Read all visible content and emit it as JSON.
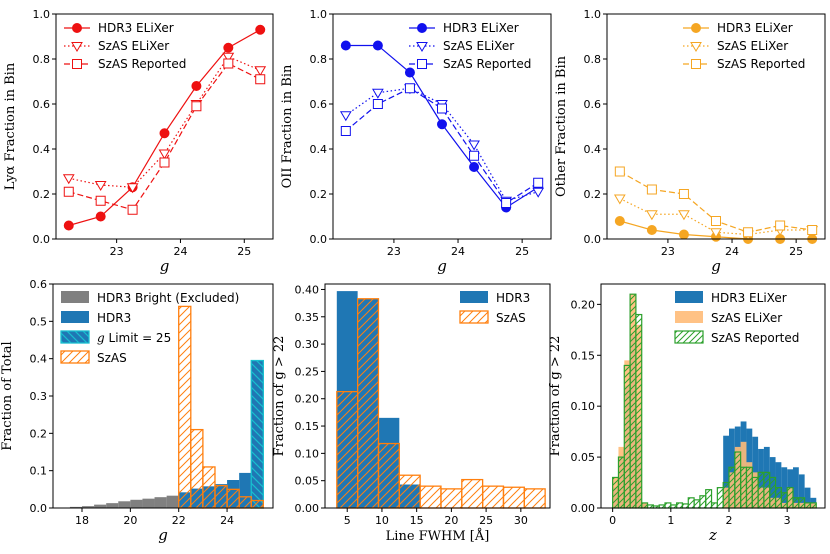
{
  "colors": {
    "lya": "#ee1111",
    "oii": "#1111ee",
    "other": "#f5a623",
    "hdr3_blue": "#1f77b4",
    "szas_orange": "#ff7f0e",
    "szas_orange_light": "#ffbb78",
    "reported_green": "#2ca02c",
    "bright_gray": "#808080",
    "glimit_cyan": "#17becf"
  },
  "chart_data": [
    {
      "id": "lya",
      "type": "line",
      "xlabel": "g",
      "ylabel": "Lyα Fraction in Bin",
      "xlim": [
        22.05,
        25.45
      ],
      "ylim": [
        0,
        1.0
      ],
      "xticks": [
        23,
        24,
        25
      ],
      "yticks": [
        0.0,
        0.2,
        0.4,
        0.6,
        0.8,
        1.0
      ],
      "x": [
        22.25,
        22.75,
        23.25,
        23.75,
        24.25,
        24.75,
        25.25
      ],
      "series": [
        {
          "name": "HDR3 ELiXer",
          "style": "solid-circle",
          "values": [
            0.06,
            0.1,
            0.23,
            0.47,
            0.68,
            0.85,
            0.93
          ]
        },
        {
          "name": "SzAS ELiXer",
          "style": "dotted-triangle",
          "values": [
            0.27,
            0.24,
            0.23,
            0.38,
            0.6,
            0.81,
            0.75
          ]
        },
        {
          "name": "SzAS Reported",
          "style": "dashed-square",
          "values": [
            0.21,
            0.17,
            0.13,
            0.34,
            0.59,
            0.78,
            0.71
          ]
        }
      ],
      "legend_loc": "top-left"
    },
    {
      "id": "oii",
      "type": "line",
      "xlabel": "g",
      "ylabel": "OII Fraction in Bin",
      "xlim": [
        22.05,
        25.45
      ],
      "ylim": [
        0,
        1.0
      ],
      "xticks": [
        23,
        24,
        25
      ],
      "yticks": [
        0.0,
        0.2,
        0.4,
        0.6,
        0.8,
        1.0
      ],
      "x": [
        22.25,
        22.75,
        23.25,
        23.75,
        24.25,
        24.75,
        25.25
      ],
      "series": [
        {
          "name": "HDR3 ELiXer",
          "style": "solid-circle",
          "values": [
            0.86,
            0.86,
            0.74,
            0.51,
            0.32,
            0.14,
            0.23
          ]
        },
        {
          "name": "SzAS ELiXer",
          "style": "dotted-triangle",
          "values": [
            0.55,
            0.65,
            0.67,
            0.6,
            0.42,
            0.17,
            0.21
          ]
        },
        {
          "name": "SzAS Reported",
          "style": "dashed-square",
          "values": [
            0.48,
            0.6,
            0.67,
            0.58,
            0.37,
            0.16,
            0.25
          ]
        }
      ],
      "legend_loc": "top-right"
    },
    {
      "id": "other",
      "type": "line",
      "xlabel": "g",
      "ylabel": "Other Fraction in Bin",
      "xlim": [
        22.05,
        25.45
      ],
      "ylim": [
        0,
        1.0
      ],
      "xticks": [
        23,
        24,
        25
      ],
      "yticks": [
        0.0,
        0.2,
        0.4,
        0.6,
        0.8,
        1.0
      ],
      "x": [
        22.25,
        22.75,
        23.25,
        23.75,
        24.25,
        24.75,
        25.25
      ],
      "series": [
        {
          "name": "HDR3 ELiXer",
          "style": "solid-circle",
          "values": [
            0.08,
            0.04,
            0.02,
            0.01,
            0.0,
            0.0,
            0.0
          ]
        },
        {
          "name": "SzAS ELiXer",
          "style": "dotted-triangle",
          "values": [
            0.18,
            0.11,
            0.11,
            0.03,
            0.02,
            0.04,
            0.04
          ]
        },
        {
          "name": "SzAS Reported",
          "style": "dashed-square",
          "values": [
            0.3,
            0.22,
            0.2,
            0.08,
            0.03,
            0.06,
            0.04
          ]
        }
      ],
      "legend_loc": "top-right"
    },
    {
      "id": "ghist",
      "type": "bar",
      "xlabel": "g",
      "ylabel": "Fraction of Total",
      "xlim": [
        16.8,
        25.9
      ],
      "ylim": [
        0,
        0.6
      ],
      "xticks": [
        18,
        20,
        22,
        24
      ],
      "yticks": [
        0.0,
        0.1,
        0.2,
        0.3,
        0.4,
        0.5,
        0.6
      ],
      "bin_width": 0.5,
      "series": [
        {
          "name": "HDR3 Bright (Excluded)",
          "style": "gray-fill",
          "bins": [
            17.0,
            17.5,
            18.0,
            18.5,
            19.0,
            19.5,
            20.0,
            20.5,
            21.0,
            21.5
          ],
          "values": [
            0.001,
            0.003,
            0.005,
            0.009,
            0.013,
            0.018,
            0.022,
            0.025,
            0.029,
            0.033
          ]
        },
        {
          "name": "HDR3",
          "style": "blue-fill",
          "bins": [
            22.0,
            22.5,
            23.0,
            23.5,
            24.0,
            24.5
          ],
          "values": [
            0.042,
            0.052,
            0.058,
            0.064,
            0.075,
            0.094
          ]
        },
        {
          "name": "g Limit = 25",
          "style": "cyan-hatch",
          "bins": [
            25.0
          ],
          "values": [
            0.395
          ]
        },
        {
          "name": "SzAS",
          "style": "orange-hatch",
          "bins": [
            22.0,
            22.5,
            23.0,
            23.5,
            24.0,
            24.5,
            25.0
          ],
          "values": [
            0.54,
            0.21,
            0.11,
            0.06,
            0.05,
            0.03,
            0.02
          ]
        }
      ],
      "legend_loc": "top-left"
    },
    {
      "id": "fwhm",
      "type": "bar",
      "xlabel": "Line FWHM [Å]",
      "ylabel": "Fraction of g > 22",
      "xlim": [
        1.8,
        34.2
      ],
      "ylim": [
        0,
        0.41
      ],
      "xticks": [
        5,
        10,
        15,
        20,
        25,
        30
      ],
      "yticks": [
        0.0,
        0.05,
        0.1,
        0.15,
        0.2,
        0.25,
        0.3,
        0.35,
        0.4
      ],
      "series": [
        {
          "name": "HDR3",
          "style": "blue-fill",
          "edges": [
            3.5,
            6.5,
            9.5,
            12.5,
            15.5
          ],
          "values": [
            0.397,
            0.383,
            0.165,
            0.043
          ]
        },
        {
          "name": "SzAS",
          "style": "orange-hatch",
          "edges": [
            3.5,
            6.5,
            9.5,
            12.5,
            15.5,
            18.5,
            21.5,
            24.5,
            27.5,
            30.5,
            33.5
          ],
          "values": [
            0.213,
            0.383,
            0.118,
            0.06,
            0.04,
            0.035,
            0.052,
            0.04,
            0.038,
            0.035
          ]
        }
      ],
      "legend_loc": "top-right"
    },
    {
      "id": "zhist",
      "type": "bar",
      "xlabel": "z",
      "ylabel": "Fraction of g > 22",
      "xlim": [
        -0.2,
        3.65
      ],
      "ylim": [
        0,
        0.22
      ],
      "xticks": [
        0,
        1,
        2,
        3
      ],
      "yticks": [
        0.0,
        0.05,
        0.1,
        0.15,
        0.2
      ],
      "bin_width": 0.1,
      "series": [
        {
          "name": "HDR3 ELiXer",
          "style": "blue-fill",
          "bins": [
            0.0,
            0.1,
            0.2,
            0.3,
            0.4,
            0.5,
            1.9,
            2.0,
            2.1,
            2.2,
            2.3,
            2.4,
            2.5,
            2.6,
            2.7,
            2.8,
            2.9,
            3.0,
            3.1,
            3.2,
            3.3,
            3.4
          ],
          "values": [
            0.02,
            0.05,
            0.12,
            0.17,
            0.08,
            0.005,
            0.071,
            0.078,
            0.08,
            0.085,
            0.078,
            0.07,
            0.058,
            0.06,
            0.05,
            0.045,
            0.04,
            0.038,
            0.04,
            0.033,
            0.02,
            0.01
          ]
        },
        {
          "name": "SzAS ELiXer",
          "style": "orange-fill-light",
          "bins": [
            0.0,
            0.1,
            0.2,
            0.3,
            0.4,
            0.5,
            1.9,
            2.0,
            2.1,
            2.2,
            2.3,
            2.4,
            2.5,
            2.6,
            2.7,
            2.8,
            2.9,
            3.0,
            3.1,
            3.2,
            3.3,
            3.4
          ],
          "values": [
            0.03,
            0.06,
            0.145,
            0.21,
            0.18,
            0.005,
            0.02,
            0.035,
            0.06,
            0.065,
            0.045,
            0.035,
            0.02,
            0.02,
            0.01,
            0.01,
            0.005,
            0.02,
            0.005,
            0.005,
            0.005,
            0.005
          ]
        },
        {
          "name": "SzAS Reported",
          "style": "green-hatch",
          "bins": [
            0.0,
            0.1,
            0.2,
            0.3,
            0.4,
            0.5,
            0.6,
            0.7,
            0.8,
            0.9,
            1.0,
            1.1,
            1.2,
            1.3,
            1.4,
            1.5,
            1.6,
            1.7,
            1.8,
            1.9,
            2.0,
            2.1,
            2.2,
            2.3,
            2.4,
            2.5,
            2.6,
            2.7,
            2.8,
            2.9,
            3.0,
            3.1,
            3.2,
            3.3,
            3.4
          ],
          "values": [
            0.03,
            0.05,
            0.14,
            0.21,
            0.19,
            0.005,
            0.003,
            0.002,
            0.003,
            0.005,
            0.003,
            0.005,
            0.004,
            0.01,
            0.008,
            0.012,
            0.018,
            0.005,
            0.02,
            0.025,
            0.04,
            0.055,
            0.04,
            0.04,
            0.03,
            0.035,
            0.035,
            0.03,
            0.02,
            0.015,
            0.02,
            0.01,
            0.01,
            0.005,
            0.005
          ]
        }
      ],
      "legend_loc": "top-right"
    }
  ]
}
